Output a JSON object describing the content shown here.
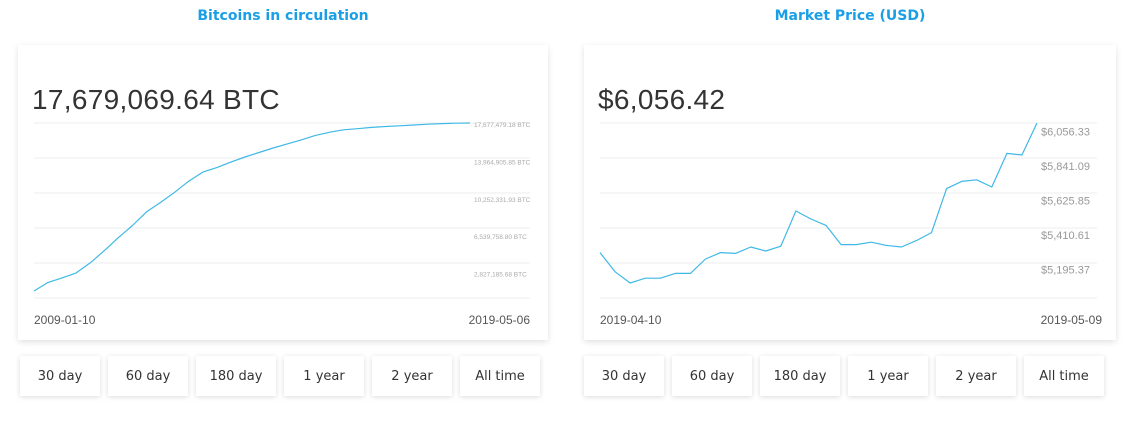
{
  "accent_color": "#1a9fe6",
  "line_color": "#3fb8e6",
  "range_buttons": [
    "30 day",
    "60 day",
    "180 day",
    "1 year",
    "2 year",
    "All time"
  ],
  "chart_data": [
    {
      "type": "line",
      "title": "Bitcoins in circulation",
      "headline": "17,679,069.64 BTC",
      "x_start_label": "2009-01-10",
      "x_end_label": "2019-05-06",
      "y_tick_labels": [
        "17,677,479.18 BTC",
        "13,964,905.85 BTC",
        "10,252,331.93 BTC",
        "6,539,758.80 BTC",
        "2,827,185.68 BTC"
      ],
      "y_ticks": [
        17677479.18,
        13964905.85,
        10252331.93,
        6539758.8,
        2827185.68
      ],
      "ylim": [
        1000000,
        17677479.18
      ],
      "x": [
        "2009-01-10",
        "2009-05-16",
        "2009-09-20",
        "2010-01-25",
        "2010-05-31",
        "2010-10-04",
        "2011-02-08",
        "2011-06-14",
        "2011-10-19",
        "2012-02-22",
        "2012-06-27",
        "2012-11-01",
        "2013-03-07",
        "2013-07-11",
        "2013-11-15",
        "2014-03-21",
        "2014-07-26",
        "2014-11-29",
        "2015-04-05",
        "2015-08-09",
        "2015-12-13",
        "2016-04-18",
        "2016-08-23",
        "2016-12-26",
        "2017-05-01",
        "2017-09-05",
        "2017-11-08",
        "2018-03-15",
        "2018-07-20",
        "2018-11-23",
        "2019-03-30",
        "2019-05-06"
      ],
      "values": [
        1000000,
        1850000,
        2300000,
        2800000,
        3800000,
        5000000,
        6300000,
        7500000,
        8850000,
        9800000,
        10800000,
        11900000,
        12800000,
        13250000,
        13800000,
        14300000,
        14750000,
        15200000,
        15600000,
        16000000,
        16450000,
        16750000,
        17000000,
        17110000,
        17240000,
        17330000,
        17400000,
        17480000,
        17560000,
        17620000,
        17660000,
        17677479.18
      ]
    },
    {
      "type": "line",
      "title": "Market Price (USD)",
      "headline": "$6,056.42",
      "x_start_label": "2019-04-10",
      "x_end_label": "2019-05-09",
      "y_tick_labels": [
        "$6,056.33",
        "$5,841.09",
        "$5,625.85",
        "$5,410.61",
        "$5,195.37"
      ],
      "y_ticks": [
        6056.33,
        5841.09,
        5625.85,
        5410.61,
        5195.37
      ],
      "ylim": [
        5060,
        6110
      ],
      "x": [
        "2019-04-10",
        "2019-04-11",
        "2019-04-12",
        "2019-04-13",
        "2019-04-14",
        "2019-04-15",
        "2019-04-16",
        "2019-04-17",
        "2019-04-18",
        "2019-04-19",
        "2019-04-20",
        "2019-04-21",
        "2019-04-22",
        "2019-04-23",
        "2019-04-24",
        "2019-04-25",
        "2019-04-26",
        "2019-04-27",
        "2019-04-28",
        "2019-04-29",
        "2019-04-30",
        "2019-05-01",
        "2019-05-02",
        "2019-05-03",
        "2019-05-04",
        "2019-05-05",
        "2019-05-06",
        "2019-05-07",
        "2019-05-08",
        "2019-05-09"
      ],
      "values": [
        5300,
        5180,
        5110,
        5140,
        5140,
        5170,
        5170,
        5260,
        5300,
        5295,
        5335,
        5310,
        5340,
        5560,
        5510,
        5470,
        5350,
        5350,
        5365,
        5345,
        5335,
        5375,
        5425,
        5700,
        5745,
        5755,
        5710,
        5920,
        5910,
        6110
      ]
    }
  ]
}
